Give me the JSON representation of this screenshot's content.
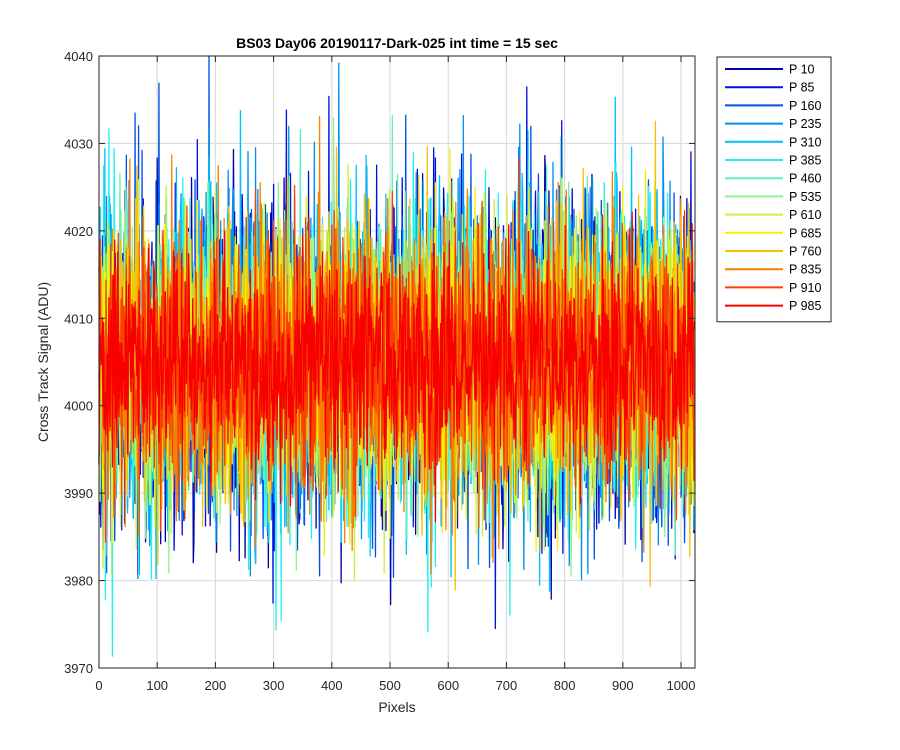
{
  "chart_data": {
    "type": "line",
    "title": "BS03 Day06 20190117-Dark-025 int time = 15 sec",
    "xlabel": "Pixels",
    "ylabel": "Cross Track Signal (ADU)",
    "xlim": [
      0,
      1024
    ],
    "ylim": [
      3970,
      4040
    ],
    "xticks": [
      0,
      100,
      200,
      300,
      400,
      500,
      600,
      700,
      800,
      900,
      1000
    ],
    "yticks": [
      3970,
      3980,
      3990,
      4000,
      4010,
      4020,
      4030,
      4040
    ],
    "grid": true,
    "legend_position": "outside-right",
    "n_pixels": 1024,
    "series": [
      {
        "name": "P 10",
        "color": "#0000aa",
        "center": 4005,
        "spread": 9
      },
      {
        "name": "P 85",
        "color": "#0010dd",
        "center": 4005,
        "spread": 9
      },
      {
        "name": "P 160",
        "color": "#0050e8",
        "center": 4005,
        "spread": 9
      },
      {
        "name": "P 235",
        "color": "#0090f0",
        "center": 4005,
        "spread": 9
      },
      {
        "name": "P 310",
        "color": "#00c0f8",
        "center": 4005,
        "spread": 9
      },
      {
        "name": "P 385",
        "color": "#20f0f0",
        "center": 4005,
        "spread": 9
      },
      {
        "name": "P 460",
        "color": "#60f0c0",
        "center": 4005,
        "spread": 8
      },
      {
        "name": "P 535",
        "color": "#90f090",
        "center": 4005,
        "spread": 8
      },
      {
        "name": "P 610",
        "color": "#c8f040",
        "center": 4005,
        "spread": 8
      },
      {
        "name": "P 685",
        "color": "#f8f000",
        "center": 4005,
        "spread": 8
      },
      {
        "name": "P 760",
        "color": "#f8c000",
        "center": 4005,
        "spread": 8
      },
      {
        "name": "P 835",
        "color": "#f88000",
        "center": 4005,
        "spread": 8
      },
      {
        "name": "P 910",
        "color": "#f84000",
        "center": 4005,
        "spread": 7
      },
      {
        "name": "P 985",
        "color": "#f80000",
        "center": 4005,
        "spread": 6
      }
    ]
  }
}
